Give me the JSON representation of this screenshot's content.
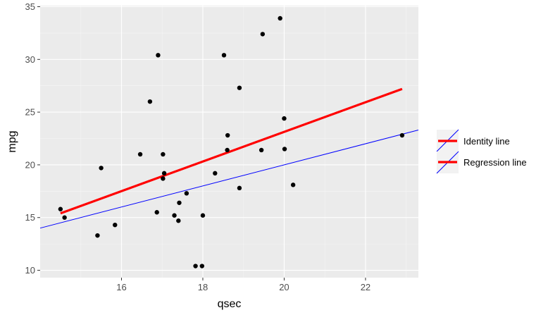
{
  "chart_data": {
    "type": "scatter",
    "xlabel": "qsec",
    "ylabel": "mpg",
    "xlim": [
      14.0,
      23.3
    ],
    "ylim": [
      9.3,
      35.1
    ],
    "x_ticks": [
      16,
      18,
      20,
      22
    ],
    "y_ticks": [
      10,
      15,
      20,
      25,
      30,
      35
    ],
    "x_tick_labels": [
      "16",
      "18",
      "20",
      "22"
    ],
    "y_tick_labels": [
      "10",
      "15",
      "20",
      "25",
      "30",
      "35"
    ],
    "grid": true,
    "panel_background": "#ebebeb",
    "points": [
      {
        "x": 14.5,
        "y": 15.8
      },
      {
        "x": 14.6,
        "y": 15.0
      },
      {
        "x": 15.41,
        "y": 13.3
      },
      {
        "x": 15.5,
        "y": 19.7
      },
      {
        "x": 15.84,
        "y": 14.3
      },
      {
        "x": 16.46,
        "y": 21.0
      },
      {
        "x": 16.7,
        "y": 26.0
      },
      {
        "x": 16.87,
        "y": 15.5
      },
      {
        "x": 16.9,
        "y": 30.4
      },
      {
        "x": 17.02,
        "y": 21.0
      },
      {
        "x": 17.02,
        "y": 18.7
      },
      {
        "x": 17.05,
        "y": 19.2
      },
      {
        "x": 17.3,
        "y": 15.2
      },
      {
        "x": 17.4,
        "y": 14.7
      },
      {
        "x": 17.42,
        "y": 16.4
      },
      {
        "x": 17.6,
        "y": 17.3
      },
      {
        "x": 17.82,
        "y": 10.4
      },
      {
        "x": 17.98,
        "y": 10.4
      },
      {
        "x": 18.0,
        "y": 15.2
      },
      {
        "x": 18.3,
        "y": 19.2
      },
      {
        "x": 18.52,
        "y": 30.4
      },
      {
        "x": 18.6,
        "y": 21.4
      },
      {
        "x": 18.61,
        "y": 22.8
      },
      {
        "x": 18.9,
        "y": 17.8
      },
      {
        "x": 18.9,
        "y": 27.3
      },
      {
        "x": 19.44,
        "y": 21.4
      },
      {
        "x": 19.47,
        "y": 32.4
      },
      {
        "x": 19.9,
        "y": 33.9
      },
      {
        "x": 20.0,
        "y": 24.4
      },
      {
        "x": 20.01,
        "y": 21.5
      },
      {
        "x": 20.22,
        "y": 18.1
      },
      {
        "x": 22.9,
        "y": 22.8
      }
    ],
    "series": [
      {
        "name": "Identity line",
        "color": "#0000ff",
        "x": [
          14.0,
          23.3
        ],
        "y": [
          14.0,
          23.3
        ]
      },
      {
        "name": "Regression line",
        "color": "#ff0000",
        "x": [
          14.5,
          22.9
        ],
        "y": [
          15.4,
          27.2
        ]
      }
    ],
    "legend": {
      "position": "right",
      "entries": [
        "Identity line",
        "Regression line"
      ]
    }
  }
}
